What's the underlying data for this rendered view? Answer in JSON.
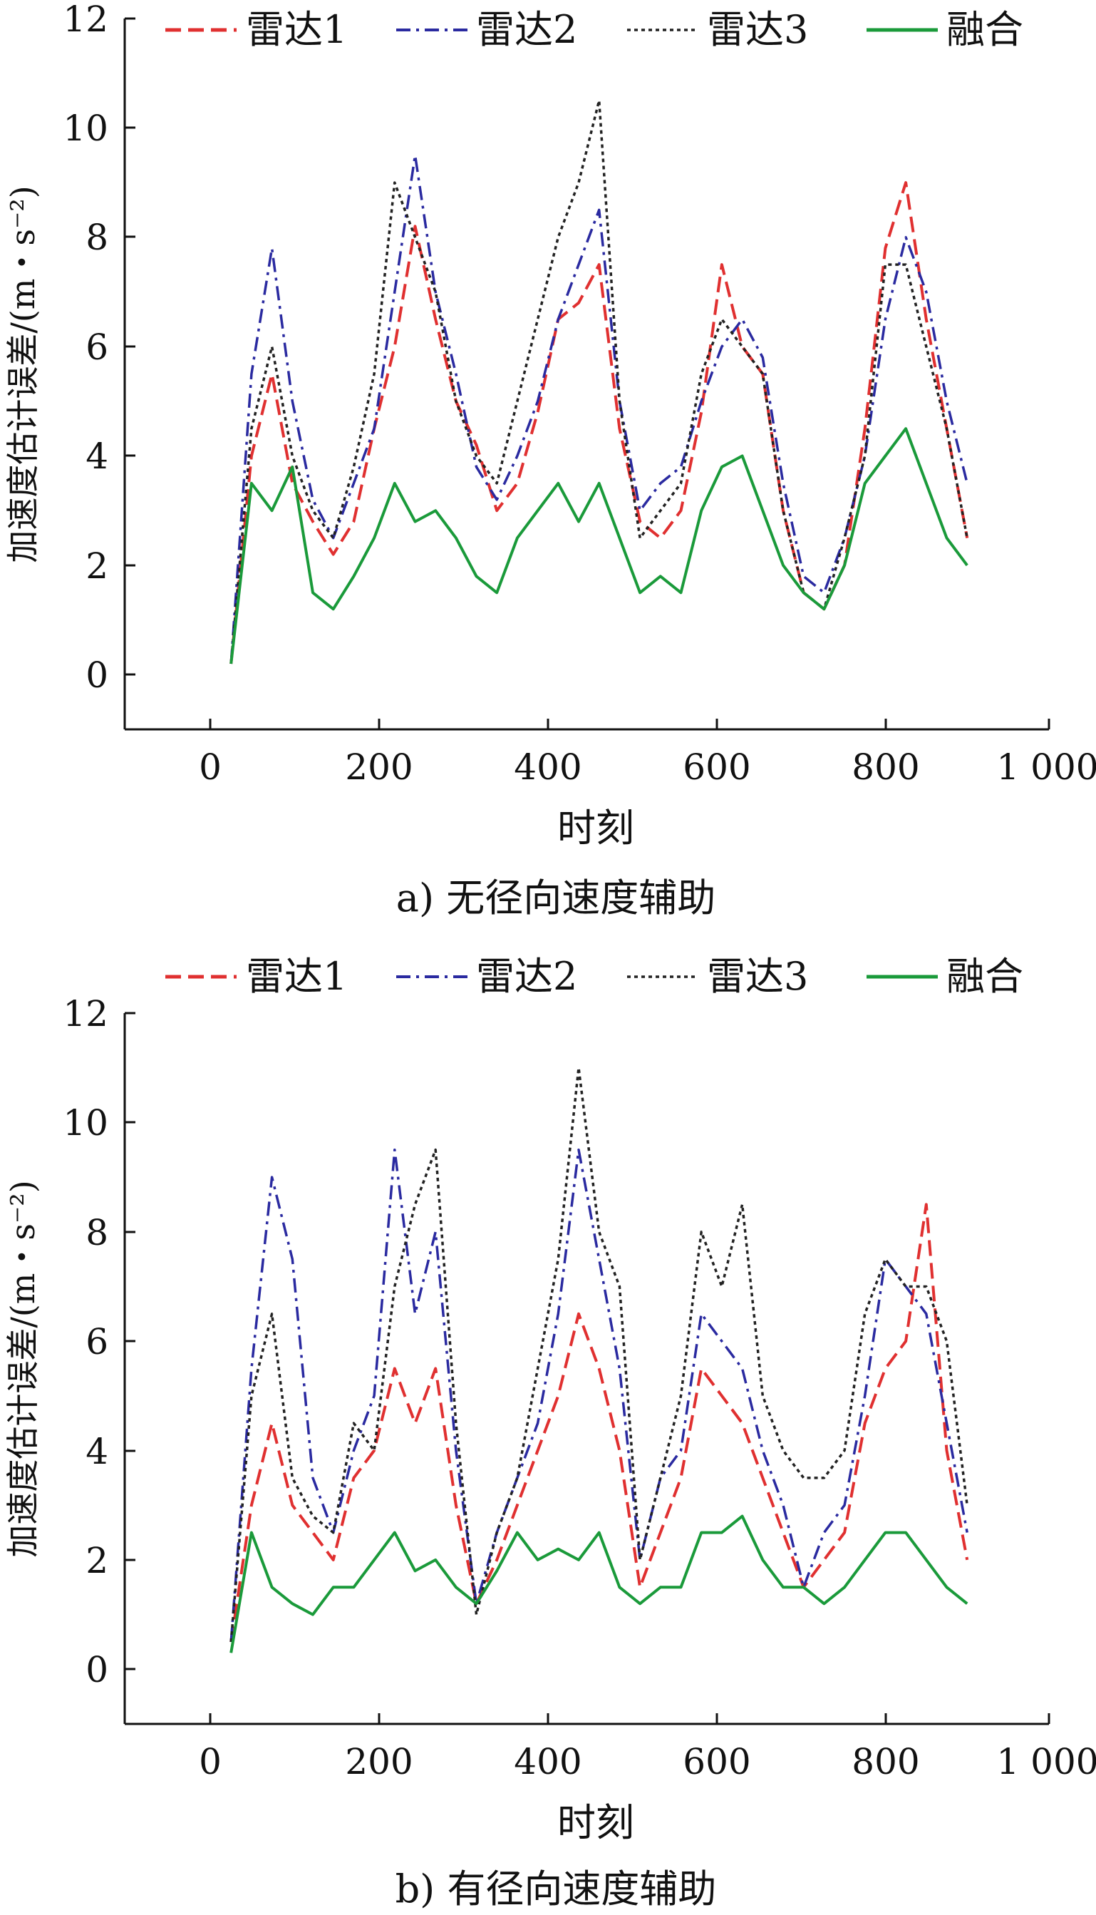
{
  "chart_data": [
    {
      "type": "line",
      "panel_id": "a",
      "caption": "a) 无径向速度辅助",
      "xlabel": "时刻",
      "ylabel": "加速度估计误差/(m・s⁻²)",
      "xlim": [
        -130,
        1000
      ],
      "ylim": [
        -1,
        12
      ],
      "xticks": [
        0,
        200,
        400,
        600,
        800,
        1000
      ],
      "xtick_labels": [
        "0",
        "200",
        "400",
        "600",
        "800",
        "1 000"
      ],
      "yticks": [
        0,
        2,
        4,
        6,
        8,
        10,
        12
      ],
      "ytick_labels": [
        "0",
        "2",
        "4",
        "6",
        "8",
        "10",
        "12"
      ],
      "grid": false,
      "legend_position": "top",
      "x": [
        0,
        25,
        50,
        75,
        100,
        125,
        150,
        175,
        200,
        225,
        250,
        275,
        300,
        325,
        350,
        375,
        400,
        425,
        450,
        475,
        500,
        525,
        550,
        575,
        600,
        625,
        650,
        675,
        700,
        725,
        750,
        775,
        800,
        825,
        850,
        875,
        900
      ],
      "series": [
        {
          "name": "雷达1",
          "color": "#e03030",
          "dash": "dashed",
          "values": [
            0.2,
            4.0,
            5.5,
            3.5,
            2.8,
            2.2,
            2.8,
            4.5,
            6.0,
            8.2,
            6.5,
            5.0,
            4.2,
            3.0,
            3.5,
            4.8,
            6.5,
            6.8,
            7.5,
            4.5,
            2.8,
            2.5,
            3.0,
            4.8,
            7.5,
            6.0,
            5.5,
            3.0,
            1.5,
            1.2,
            2.0,
            4.5,
            7.8,
            9.0,
            6.5,
            4.5,
            2.5
          ]
        },
        {
          "name": "雷达2",
          "color": "#2a2aa0",
          "dash": "dashdot",
          "values": [
            0.2,
            5.5,
            7.8,
            5.0,
            3.2,
            2.5,
            3.5,
            4.5,
            7.0,
            9.5,
            7.0,
            5.5,
            3.8,
            3.2,
            4.0,
            5.0,
            6.5,
            7.5,
            8.5,
            5.0,
            3.0,
            3.5,
            3.8,
            5.0,
            6.0,
            6.5,
            5.8,
            3.5,
            1.8,
            1.5,
            2.5,
            4.0,
            6.5,
            8.0,
            7.0,
            5.0,
            3.5
          ]
        },
        {
          "name": "雷达3",
          "color": "#222222",
          "dash": "dotted",
          "values": [
            0.2,
            4.5,
            6.0,
            4.0,
            3.0,
            2.5,
            3.8,
            5.5,
            9.0,
            8.0,
            7.0,
            5.0,
            4.0,
            3.5,
            5.0,
            6.5,
            8.0,
            9.0,
            10.5,
            5.0,
            2.5,
            3.0,
            3.5,
            5.5,
            6.5,
            6.0,
            5.5,
            3.0,
            1.5,
            1.2,
            2.5,
            4.0,
            7.5,
            7.5,
            6.0,
            4.5,
            2.5
          ]
        },
        {
          "name": "融合",
          "color": "#1a9a3a",
          "dash": "solid",
          "values": [
            0.2,
            3.5,
            3.0,
            3.8,
            1.5,
            1.2,
            1.8,
            2.5,
            3.5,
            2.8,
            3.0,
            2.5,
            1.8,
            1.5,
            2.5,
            3.0,
            3.5,
            2.8,
            3.5,
            2.5,
            1.5,
            1.8,
            1.5,
            3.0,
            3.8,
            4.0,
            3.0,
            2.0,
            1.5,
            1.2,
            2.0,
            3.5,
            4.0,
            4.5,
            3.5,
            2.5,
            2.0
          ]
        }
      ]
    },
    {
      "type": "line",
      "panel_id": "b",
      "caption": "b) 有径向速度辅助",
      "xlabel": "时刻",
      "ylabel": "加速度估计误差/(m・s⁻²)",
      "xlim": [
        -130,
        1000
      ],
      "ylim": [
        -1,
        12
      ],
      "xticks": [
        0,
        200,
        400,
        600,
        800,
        1000
      ],
      "xtick_labels": [
        "0",
        "200",
        "400",
        "600",
        "800",
        "1 000"
      ],
      "yticks": [
        0,
        2,
        4,
        6,
        8,
        10,
        12
      ],
      "ytick_labels": [
        "0",
        "2",
        "4",
        "6",
        "8",
        "10",
        "12"
      ],
      "grid": false,
      "legend_position": "top",
      "x": [
        0,
        25,
        50,
        75,
        100,
        125,
        150,
        175,
        200,
        225,
        250,
        275,
        300,
        325,
        350,
        375,
        400,
        425,
        450,
        475,
        500,
        525,
        550,
        575,
        600,
        625,
        650,
        675,
        700,
        725,
        750,
        775,
        800,
        825,
        850,
        875,
        900
      ],
      "series": [
        {
          "name": "雷达1",
          "color": "#e03030",
          "dash": "dashed",
          "values": [
            0.5,
            3.0,
            4.5,
            3.0,
            2.5,
            2.0,
            3.5,
            4.0,
            5.5,
            4.5,
            5.5,
            3.0,
            1.2,
            2.0,
            3.0,
            4.0,
            5.0,
            6.5,
            5.5,
            4.0,
            1.5,
            2.5,
            3.5,
            5.5,
            5.0,
            4.5,
            3.5,
            2.5,
            1.5,
            2.0,
            2.5,
            4.5,
            5.5,
            6.0,
            8.5,
            4.0,
            2.0
          ]
        },
        {
          "name": "雷达2",
          "color": "#2a2aa0",
          "dash": "dashdot",
          "values": [
            0.5,
            5.5,
            9.0,
            7.5,
            3.5,
            2.5,
            4.0,
            5.0,
            9.5,
            6.5,
            8.0,
            4.0,
            1.2,
            2.5,
            3.5,
            4.5,
            6.5,
            9.5,
            7.5,
            5.5,
            2.0,
            3.5,
            4.0,
            6.5,
            6.0,
            5.5,
            4.0,
            3.0,
            1.5,
            2.5,
            3.0,
            5.0,
            7.5,
            7.0,
            6.5,
            4.5,
            2.5
          ]
        },
        {
          "name": "雷达3",
          "color": "#222222",
          "dash": "dotted",
          "values": [
            0.5,
            5.0,
            6.5,
            3.5,
            2.8,
            2.5,
            4.5,
            4.0,
            7.0,
            8.5,
            9.5,
            4.5,
            1.0,
            2.5,
            3.5,
            5.5,
            7.5,
            11.0,
            8.0,
            7.0,
            2.0,
            3.5,
            5.0,
            8.0,
            7.0,
            8.5,
            5.0,
            4.0,
            3.5,
            3.5,
            4.0,
            6.5,
            7.5,
            7.0,
            7.0,
            6.0,
            3.0
          ]
        },
        {
          "name": "融合",
          "color": "#1a9a3a",
          "dash": "solid",
          "values": [
            0.3,
            2.5,
            1.5,
            1.2,
            1.0,
            1.5,
            1.5,
            2.0,
            2.5,
            1.8,
            2.0,
            1.5,
            1.2,
            1.8,
            2.5,
            2.0,
            2.2,
            2.0,
            2.5,
            1.5,
            1.2,
            1.5,
            1.5,
            2.5,
            2.5,
            2.8,
            2.0,
            1.5,
            1.5,
            1.2,
            1.5,
            2.0,
            2.5,
            2.5,
            2.0,
            1.5,
            1.2
          ]
        }
      ]
    }
  ]
}
